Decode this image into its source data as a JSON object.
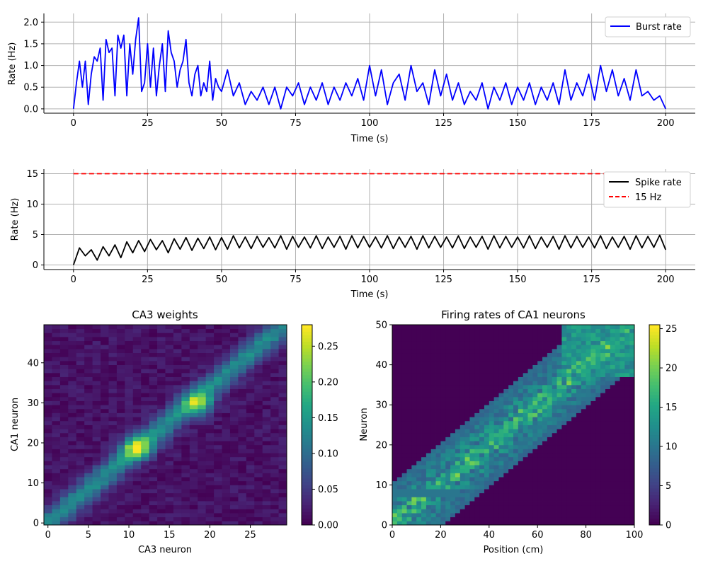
{
  "chart_data": [
    {
      "type": "line",
      "xlabel": "Time (s)",
      "ylabel": "Rate (Hz)",
      "xlim": [
        -10,
        210
      ],
      "ylim": [
        -0.1,
        2.2
      ],
      "xticks": [
        "0",
        "25",
        "50",
        "75",
        "100",
        "125",
        "150",
        "175",
        "200"
      ],
      "yticks": [
        "0.0",
        "0.5",
        "1.0",
        "1.5",
        "2.0"
      ],
      "grid": true,
      "legend": "top-right",
      "series": [
        {
          "name": "Burst rate",
          "color": "#0000ff",
          "x": [
            0,
            1,
            2,
            3,
            4,
            5,
            6,
            7,
            8,
            9,
            10,
            11,
            12,
            13,
            14,
            15,
            16,
            17,
            18,
            19,
            20,
            21,
            22,
            23,
            24,
            25,
            26,
            27,
            28,
            29,
            30,
            31,
            32,
            33,
            34,
            35,
            36,
            37,
            38,
            39,
            40,
            41,
            42,
            43,
            44,
            45,
            46,
            47,
            48,
            49,
            50,
            52,
            54,
            56,
            58,
            60,
            62,
            64,
            66,
            68,
            70,
            72,
            74,
            76,
            78,
            80,
            82,
            84,
            86,
            88,
            90,
            92,
            94,
            96,
            98,
            100,
            102,
            104,
            106,
            108,
            110,
            112,
            114,
            116,
            118,
            120,
            122,
            124,
            126,
            128,
            130,
            132,
            134,
            136,
            138,
            140,
            142,
            144,
            146,
            148,
            150,
            152,
            154,
            156,
            158,
            160,
            162,
            164,
            166,
            168,
            170,
            172,
            174,
            176,
            178,
            180,
            182,
            184,
            186,
            188,
            190,
            192,
            194,
            196,
            198,
            200
          ],
          "values": [
            0.0,
            0.6,
            1.1,
            0.5,
            1.1,
            0.1,
            0.8,
            1.2,
            1.1,
            1.4,
            0.2,
            1.6,
            1.3,
            1.4,
            0.3,
            1.7,
            1.4,
            1.7,
            0.3,
            1.5,
            0.8,
            1.6,
            2.1,
            0.4,
            0.6,
            1.5,
            0.5,
            1.4,
            0.3,
            1.0,
            1.5,
            0.4,
            1.8,
            1.3,
            1.1,
            0.5,
            0.9,
            1.1,
            1.6,
            0.6,
            0.3,
            0.8,
            1.0,
            0.3,
            0.6,
            0.4,
            1.1,
            0.2,
            0.7,
            0.5,
            0.4,
            0.9,
            0.3,
            0.6,
            0.1,
            0.4,
            0.2,
            0.5,
            0.1,
            0.5,
            0.0,
            0.5,
            0.3,
            0.6,
            0.1,
            0.5,
            0.2,
            0.6,
            0.1,
            0.5,
            0.2,
            0.6,
            0.3,
            0.7,
            0.2,
            1.0,
            0.3,
            0.9,
            0.1,
            0.6,
            0.8,
            0.2,
            1.0,
            0.4,
            0.6,
            0.1,
            0.9,
            0.3,
            0.8,
            0.2,
            0.6,
            0.1,
            0.4,
            0.2,
            0.6,
            0.0,
            0.5,
            0.2,
            0.6,
            0.1,
            0.5,
            0.2,
            0.6,
            0.1,
            0.5,
            0.2,
            0.6,
            0.1,
            0.9,
            0.2,
            0.6,
            0.3,
            0.8,
            0.2,
            1.0,
            0.4,
            0.9,
            0.3,
            0.7,
            0.2,
            0.9,
            0.3,
            0.4,
            0.2,
            0.3,
            0.0
          ],
          "label": "Burst rate"
        }
      ]
    },
    {
      "type": "line",
      "xlabel": "Time (s)",
      "ylabel": "Rate (Hz)",
      "xlim": [
        -10,
        210
      ],
      "ylim": [
        -0.75,
        15.75
      ],
      "xticks": [
        "0",
        "25",
        "50",
        "75",
        "100",
        "125",
        "150",
        "175",
        "200"
      ],
      "yticks": [
        "0",
        "5",
        "10",
        "15"
      ],
      "grid": true,
      "legend": "top-right",
      "series": [
        {
          "name": "Spike rate",
          "color": "#000000",
          "x": [
            0,
            2,
            4,
            6,
            8,
            10,
            12,
            14,
            16,
            18,
            20,
            22,
            24,
            26,
            28,
            30,
            32,
            34,
            36,
            38,
            40,
            42,
            44,
            46,
            48,
            50,
            52,
            54,
            56,
            58,
            60,
            62,
            64,
            66,
            68,
            70,
            72,
            74,
            76,
            78,
            80,
            82,
            84,
            86,
            88,
            90,
            92,
            94,
            96,
            98,
            100,
            102,
            104,
            106,
            108,
            110,
            112,
            114,
            116,
            118,
            120,
            122,
            124,
            126,
            128,
            130,
            132,
            134,
            136,
            138,
            140,
            142,
            144,
            146,
            148,
            150,
            152,
            154,
            156,
            158,
            160,
            162,
            164,
            166,
            168,
            170,
            172,
            174,
            176,
            178,
            180,
            182,
            184,
            186,
            188,
            190,
            192,
            194,
            196,
            198,
            200
          ],
          "values": [
            0,
            2.8,
            1.5,
            2.5,
            0.8,
            3.0,
            1.5,
            3.3,
            1.2,
            3.8,
            2.0,
            4.0,
            2.2,
            4.2,
            2.5,
            4.0,
            2.0,
            4.3,
            2.6,
            4.5,
            2.4,
            4.4,
            2.7,
            4.6,
            2.5,
            4.5,
            2.6,
            4.8,
            2.8,
            4.6,
            2.7,
            4.7,
            2.9,
            4.5,
            2.8,
            4.8,
            2.6,
            4.7,
            2.9,
            4.6,
            2.8,
            4.8,
            2.7,
            4.6,
            2.9,
            4.7,
            2.6,
            4.8,
            2.8,
            4.7,
            2.9,
            4.6,
            2.8,
            4.8,
            2.7,
            4.6,
            2.9,
            4.7,
            2.6,
            4.8,
            2.8,
            4.7,
            2.9,
            4.6,
            2.8,
            4.8,
            2.7,
            4.6,
            2.9,
            4.7,
            2.6,
            4.8,
            2.8,
            4.7,
            2.9,
            4.6,
            2.8,
            4.8,
            2.7,
            4.6,
            2.9,
            4.7,
            2.6,
            4.8,
            2.8,
            4.7,
            2.9,
            4.6,
            2.8,
            4.8,
            2.7,
            4.6,
            2.9,
            4.7,
            2.6,
            4.8,
            2.8,
            4.7,
            2.9,
            4.9,
            2.5
          ]
        },
        {
          "name": "15 Hz",
          "color": "#ff0000",
          "dashed": true,
          "x": [
            0,
            200
          ],
          "values": [
            15,
            15
          ]
        }
      ]
    },
    {
      "type": "heatmap",
      "title": "CA3 weights",
      "xlabel": "CA3 neuron",
      "ylabel": "CA1 neuron",
      "xlim": [
        -0.5,
        29.5
      ],
      "ylim": [
        -0.5,
        49.5
      ],
      "xticks": [
        "0",
        "5",
        "10",
        "15",
        "20",
        "25"
      ],
      "yticks": [
        "0",
        "10",
        "20",
        "30",
        "40"
      ],
      "colorbar": {
        "min": 0.0,
        "max": 0.28,
        "ticks": [
          "0.00",
          "0.05",
          "0.10",
          "0.15",
          "0.20",
          "0.25"
        ]
      },
      "pattern": "diagonal band from (0,0) to (29,49), peaks near (11,19) and (18,30)"
    },
    {
      "type": "heatmap",
      "title": "Firing rates of CA1 neurons",
      "xlabel": "Position (cm)",
      "ylabel": "Neuron",
      "xlim": [
        0,
        100
      ],
      "ylim": [
        0,
        50
      ],
      "xticks": [
        "0",
        "20",
        "40",
        "60",
        "80",
        "100"
      ],
      "yticks": [
        "0",
        "10",
        "20",
        "30",
        "40",
        "50"
      ],
      "colorbar": {
        "min": 0,
        "max": 25.5,
        "ticks": [
          "0",
          "5",
          "10",
          "15",
          "20",
          "25"
        ]
      },
      "pattern": "diagonal band of place fields from (0,0) to (100,50)"
    }
  ],
  "colors": {
    "grid": "#b0b0b0",
    "burst": "#0000ff",
    "spike": "#000000",
    "threshold": "#ff0000"
  }
}
